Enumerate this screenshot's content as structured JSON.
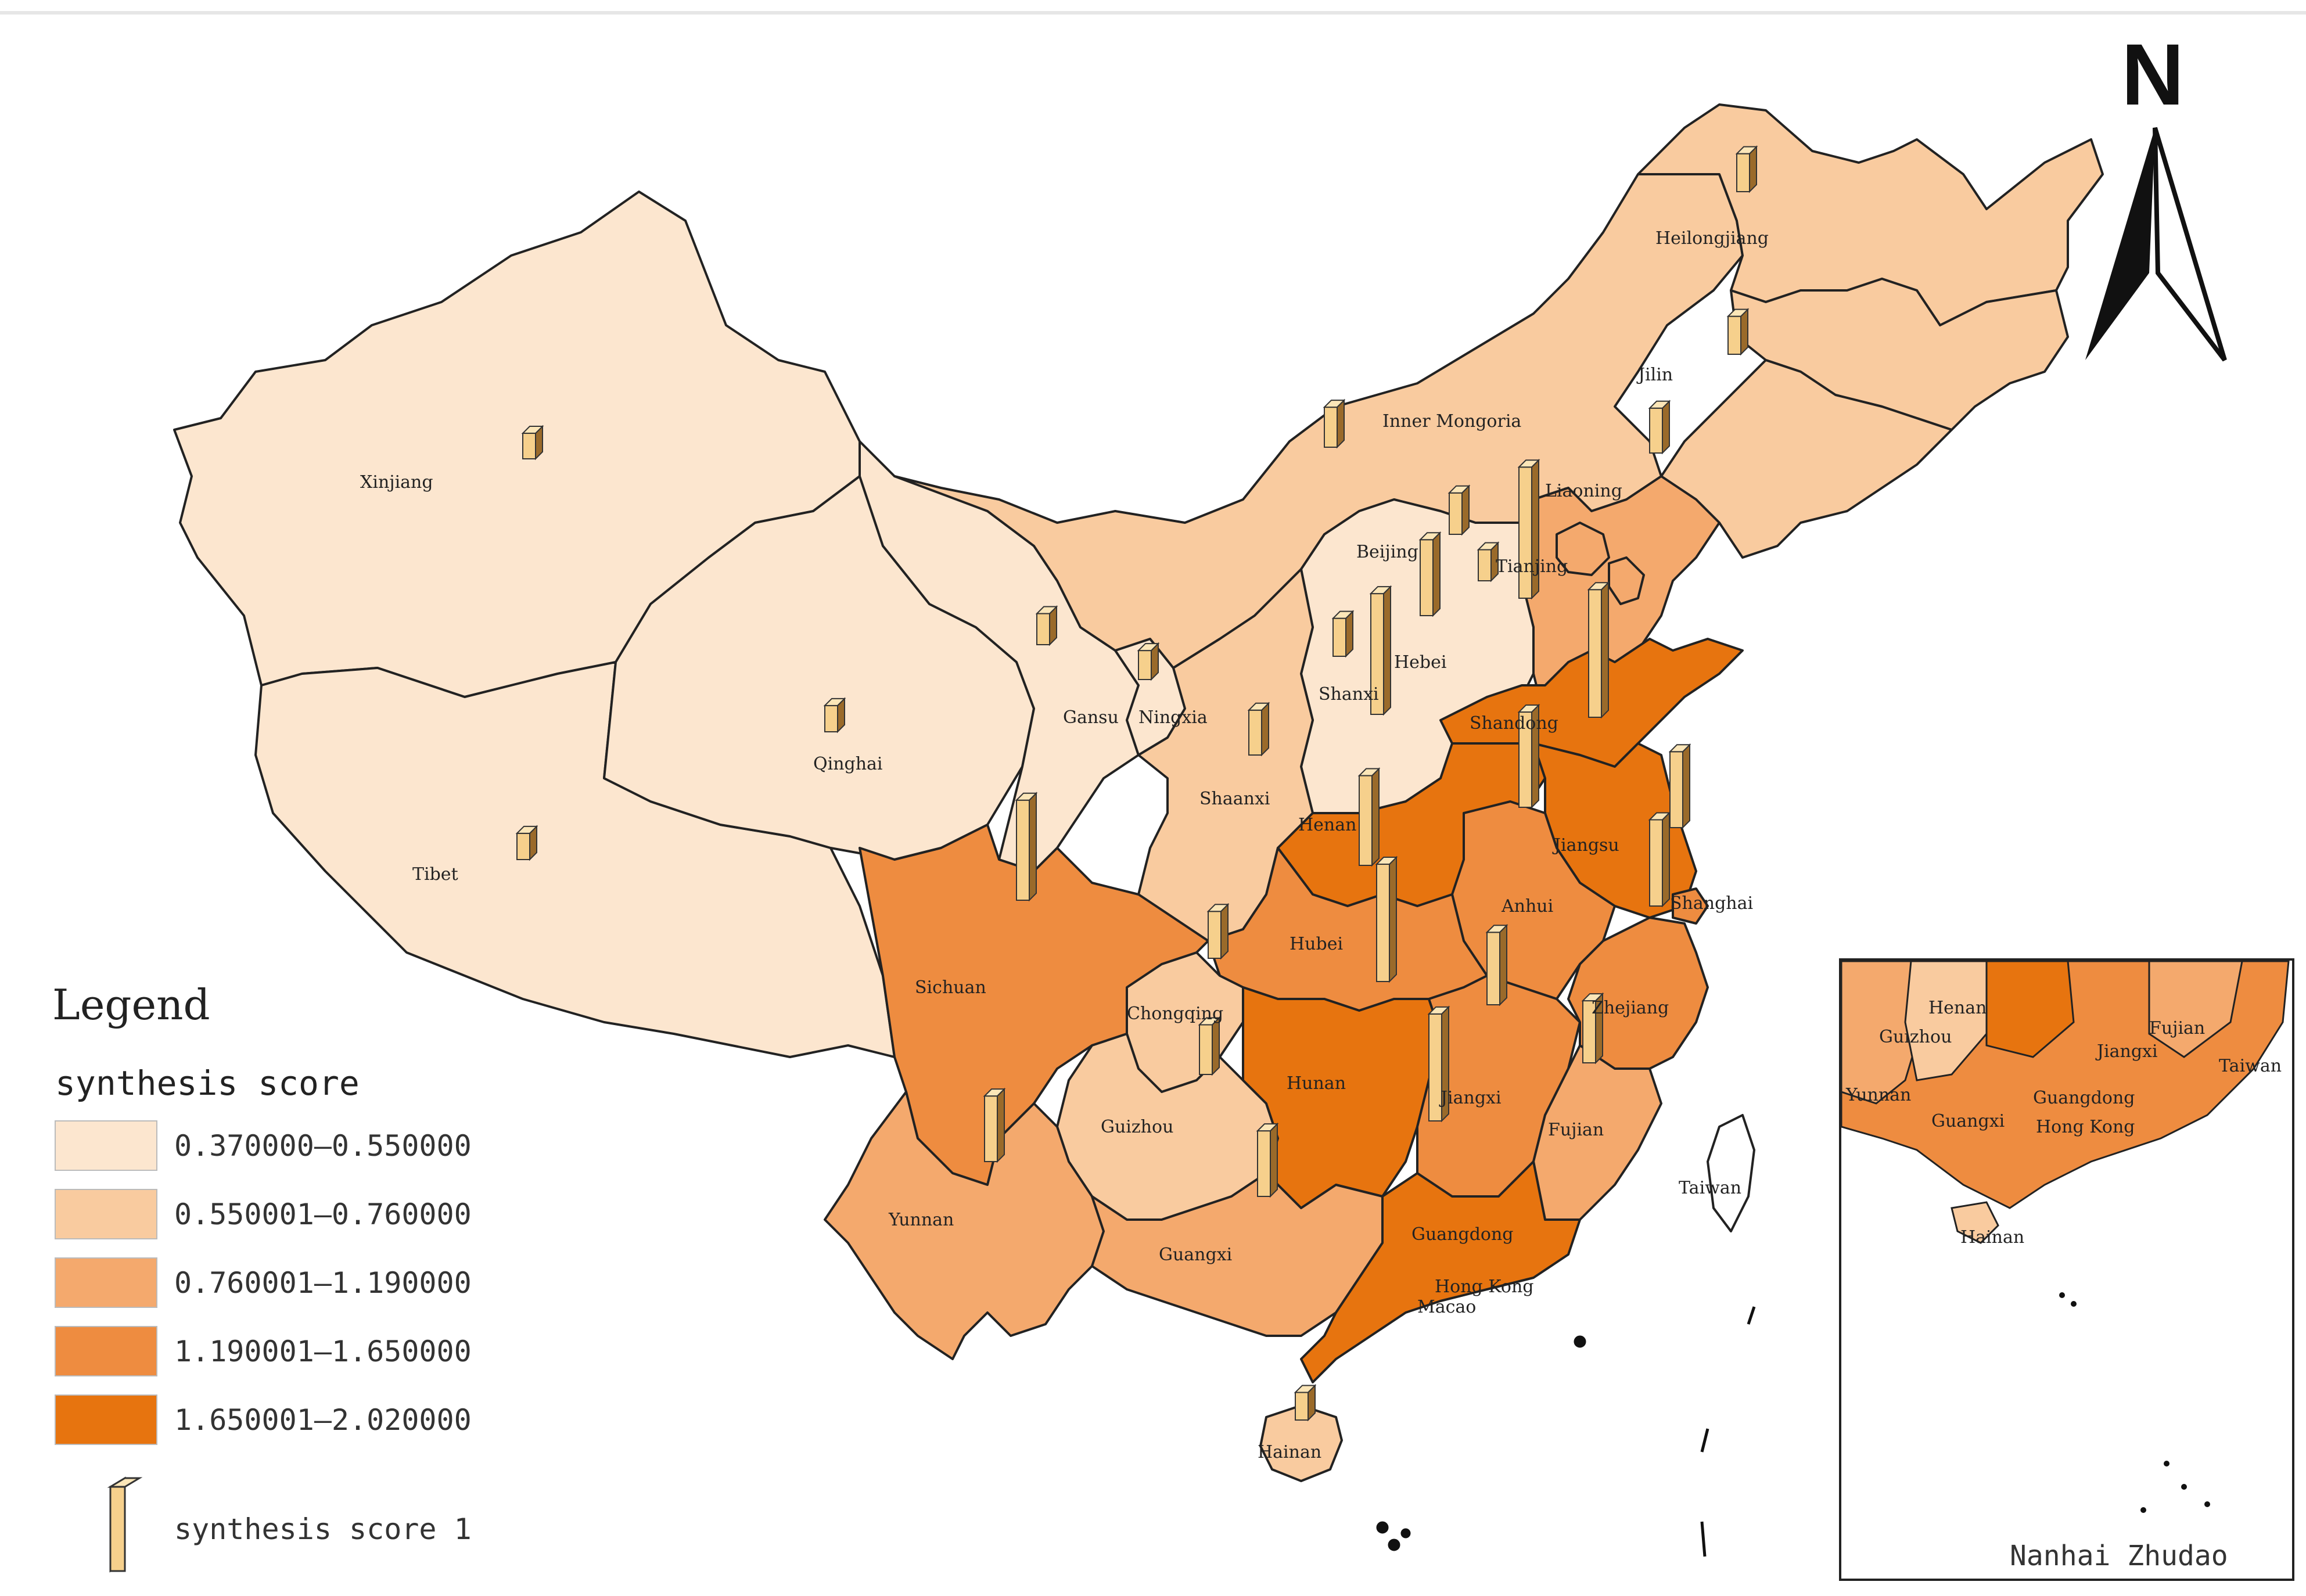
{
  "legend": {
    "title": "Legend",
    "subtitle": "synthesis score",
    "classes": [
      {
        "label": "0.370000—0.550000",
        "color": "#fce6cf"
      },
      {
        "label": "0.550001—0.760000",
        "color": "#f9cb9f"
      },
      {
        "label": "0.760001—1.190000",
        "color": "#f4a96d"
      },
      {
        "label": "1.190001—1.650000",
        "color": "#ee8c40"
      },
      {
        "label": "1.650001—2.020000",
        "color": "#e7740f"
      }
    ],
    "bar_label": "synthesis score 1",
    "bar_color": "#f6d08c"
  },
  "north_arrow": {
    "letter": "N"
  },
  "inset": {
    "label": "Nanhai Zhudao"
  },
  "provinces": [
    {
      "name": "Xinjiang",
      "class": 0,
      "bar": 0.37
    },
    {
      "name": "Tibet",
      "class": 0,
      "bar": 0.38
    },
    {
      "name": "Qinghai",
      "class": 0,
      "bar": 0.38
    },
    {
      "name": "Gansu",
      "class": 0,
      "bar": 0.45
    },
    {
      "name": "Ningxia",
      "class": 0,
      "bar": 0.42
    },
    {
      "name": "Shanxi",
      "class": 0,
      "bar": 0.55
    },
    {
      "name": "Inner Mongoria",
      "class": 1,
      "bar": 0.58
    },
    {
      "name": "Heilongjiang",
      "class": 1,
      "bar": 0.55
    },
    {
      "name": "Jilin",
      "class": 1,
      "bar": 0.55
    },
    {
      "name": "Liaoning",
      "class": 1,
      "bar": 0.65
    },
    {
      "name": "Shaanxi",
      "class": 1,
      "bar": 0.65
    },
    {
      "name": "Guizhou",
      "class": 1,
      "bar": 0.72
    },
    {
      "name": "Chongqing",
      "class": 1,
      "bar": 0.68
    },
    {
      "name": "Beijing",
      "class": 2,
      "bar": 0.6
    },
    {
      "name": "Tianjing",
      "class": 2,
      "bar": 0.45
    },
    {
      "name": "Hebei",
      "class": 2,
      "bar": 1.1
    },
    {
      "name": "Yunnan",
      "class": 2,
      "bar": 0.95
    },
    {
      "name": "Guangxi",
      "class": 2,
      "bar": 0.95
    },
    {
      "name": "Fujian",
      "class": 2,
      "bar": 0.9
    },
    {
      "name": "Sichuan",
      "class": 3,
      "bar": 1.45
    },
    {
      "name": "Hubei",
      "class": 3,
      "bar": 1.3
    },
    {
      "name": "Anhui",
      "class": 3,
      "bar": 1.38
    },
    {
      "name": "Jiangxi",
      "class": 3,
      "bar": 1.05
    },
    {
      "name": "Zhejiang",
      "class": 3,
      "bar": 1.25
    },
    {
      "name": "Shanghai",
      "class": 3,
      "bar": 1.1
    },
    {
      "name": "Guangdong",
      "class": 4,
      "bar": 1.55
    },
    {
      "name": "Hunan",
      "class": 4,
      "bar": 1.7
    },
    {
      "name": "Henan",
      "class": 4,
      "bar": 1.75
    },
    {
      "name": "Shandong",
      "class": 4,
      "bar": 1.9
    },
    {
      "name": "Jiangsu",
      "class": 4,
      "bar": 1.85
    },
    {
      "name": "Hainan",
      "class": 1,
      "bar": 0.4
    }
  ],
  "other_labels": {
    "taiwan": "Taiwan",
    "hongkong": "Hong Kong",
    "macao": "Macao"
  },
  "inset_labels": [
    "Guizhou",
    "Henan",
    "Jiangxi",
    "Fujian",
    "Taiwan",
    "Yunnan",
    "Guangxi",
    "Guangdong",
    "Hong Kong",
    "Hainan"
  ]
}
